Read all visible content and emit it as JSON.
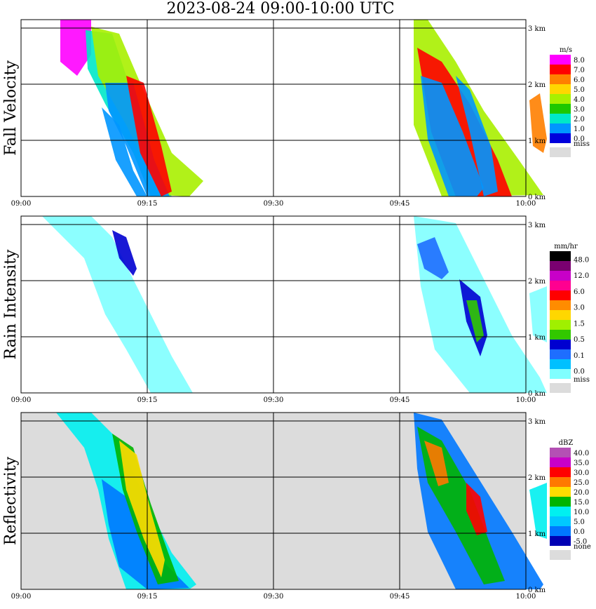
{
  "title": "2023-08-24   09:00-10:00 UTC",
  "colors": {
    "missing": "#dcdcdc",
    "grid": "#000000"
  },
  "chart_data": [
    {
      "type": "heatmap",
      "ylabel": "Fall Velocity",
      "x_ticks": [
        "09:00",
        "09:15",
        "09:30",
        "09:45",
        "10:00"
      ],
      "y_ticks": [
        "0 km",
        "1 km",
        "2 km",
        "3 km"
      ],
      "ylim_km": [
        0,
        3.0
      ],
      "grid": true,
      "background": "white",
      "legend": {
        "unit": "m/s",
        "labels": [
          "8.0",
          "7.0",
          "6.0",
          "5.0",
          "4.0",
          "3.0",
          "2.0",
          "1.0",
          "0.0"
        ],
        "colors": [
          "#ff00ff",
          "#ff0000",
          "#ff8000",
          "#ffd700",
          "#a8f000",
          "#1ec800",
          "#00e8c8",
          "#0096ff",
          "#0000dc"
        ],
        "missing_label": "miss"
      }
    },
    {
      "type": "heatmap",
      "ylabel": "Rain Intensity",
      "x_ticks": [
        "09:00",
        "09:15",
        "09:30",
        "09:45",
        "10:00"
      ],
      "y_ticks": [
        "0 km",
        "1 km",
        "2 km",
        "3 km"
      ],
      "ylim_km": [
        0,
        3.0
      ],
      "grid": true,
      "background": "white",
      "legend": {
        "unit": "mm/hr",
        "labels": [
          "48.0",
          "12.0",
          "6.0",
          "3.0",
          "1.5",
          "0.5",
          "0.1",
          "0.0"
        ],
        "colors": [
          "#000000",
          "#7a0070",
          "#c800c8",
          "#ff0090",
          "#ff0000",
          "#ff8c00",
          "#ffd700",
          "#a0f000",
          "#32c800",
          "#0000d0",
          "#1e6eff",
          "#00c0ff",
          "#80ffff"
        ],
        "missing_label": "miss"
      }
    },
    {
      "type": "heatmap",
      "ylabel": "Reflectivity",
      "x_ticks": [
        "09:00",
        "09:15",
        "09:30",
        "09:45",
        "10:00"
      ],
      "y_ticks": [
        "0 km",
        "1 km",
        "2 km",
        "3 km"
      ],
      "ylim_km": [
        0,
        3.0
      ],
      "grid": true,
      "background": "gray",
      "legend": {
        "unit": "dBZ",
        "labels": [
          "40.0",
          "35.0",
          "30.0",
          "25.0",
          "20.0",
          "15.0",
          "10.0",
          "5.0",
          "0.0",
          "-5.0"
        ],
        "colors": [
          "#b450b4",
          "#c800c8",
          "#ff0000",
          "#ff7800",
          "#ffdc00",
          "#00b400",
          "#00f0f0",
          "#00c8ff",
          "#0078ff",
          "#0000b4"
        ],
        "missing_label": "none"
      }
    }
  ]
}
